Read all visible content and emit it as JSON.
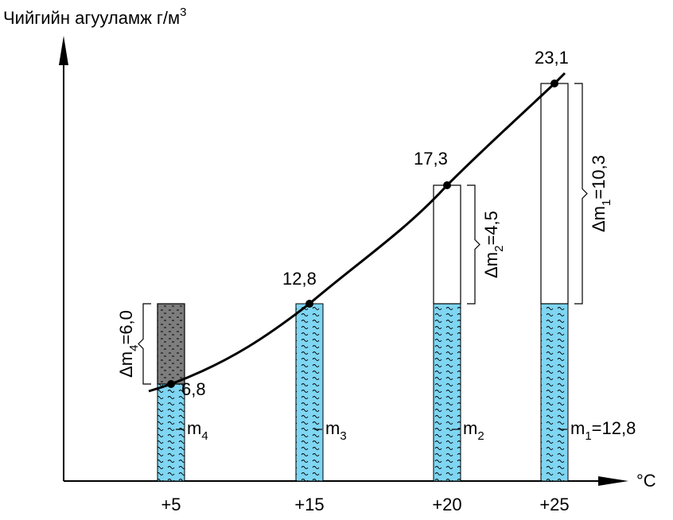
{
  "y_axis": {
    "label": "Чийгийн агууламж г/м",
    "superscript": "3"
  },
  "x_axis": {
    "unit": "°C"
  },
  "columns": [
    {
      "temperature": "+5",
      "saturation": "6,8",
      "water": {
        "symbol": "m",
        "index": "4"
      },
      "delta": {
        "symbol": "Δm",
        "index": "4",
        "value": "=6,0"
      }
    },
    {
      "temperature": "+15",
      "saturation": "12,8",
      "water": {
        "symbol": "m",
        "index": "3"
      }
    },
    {
      "temperature": "+20",
      "saturation": "17,3",
      "water": {
        "symbol": "m",
        "index": "2"
      },
      "delta": {
        "symbol": "Δm",
        "index": "2",
        "value": "=4,5"
      }
    },
    {
      "temperature": "+25",
      "saturation": "23,1",
      "water": {
        "symbol": "m",
        "index": "1",
        "value": "=12,8"
      },
      "delta": {
        "symbol": "Δm",
        "index": "1",
        "value": "=10,3"
      }
    }
  ]
}
